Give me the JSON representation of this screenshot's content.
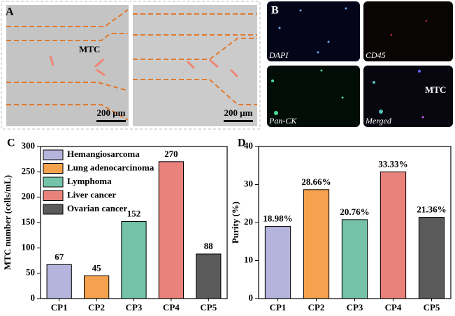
{
  "panel_a": {
    "label": "A",
    "annotation": "MTC",
    "scale_bars": [
      "200 μm",
      "200 μm"
    ]
  },
  "panel_b": {
    "label": "B",
    "channels": [
      "DAPI",
      "CD45",
      "Pan-CK",
      "Merged"
    ],
    "annotation": "MTC"
  },
  "chart_data": [
    {
      "type": "bar",
      "panel_label": "C",
      "y_label": "MTC number (cells/mL)",
      "categories": [
        "CP1",
        "CP2",
        "CP3",
        "CP4",
        "CP5"
      ],
      "values": [
        67,
        45,
        152,
        270,
        88
      ],
      "colors": [
        "#b4b4dc",
        "#f5a24e",
        "#74c3a8",
        "#e9827b",
        "#5a5a5a"
      ],
      "legend": [
        "Hemangiosarcoma",
        "Lung adenocarcinoma",
        "Lymphoma",
        "Liver cancer",
        "Ovarian cancer"
      ],
      "ylim": [
        0,
        300
      ],
      "yticks": [
        0,
        50,
        100,
        150,
        200,
        250,
        300
      ]
    },
    {
      "type": "bar",
      "panel_label": "D",
      "y_label": "Purity (%)",
      "categories": [
        "CP1",
        "CP2",
        "CP3",
        "CP4",
        "CP5"
      ],
      "values": [
        18.98,
        28.66,
        20.76,
        33.33,
        21.36
      ],
      "value_labels": [
        "18.98%",
        "28.66%",
        "20.76%",
        "33.33%",
        "21.36%"
      ],
      "colors": [
        "#b4b4dc",
        "#f5a24e",
        "#74c3a8",
        "#e9827b",
        "#5a5a5a"
      ],
      "ylim": [
        0,
        40
      ],
      "yticks": [
        0,
        10,
        20,
        30,
        40
      ]
    }
  ]
}
